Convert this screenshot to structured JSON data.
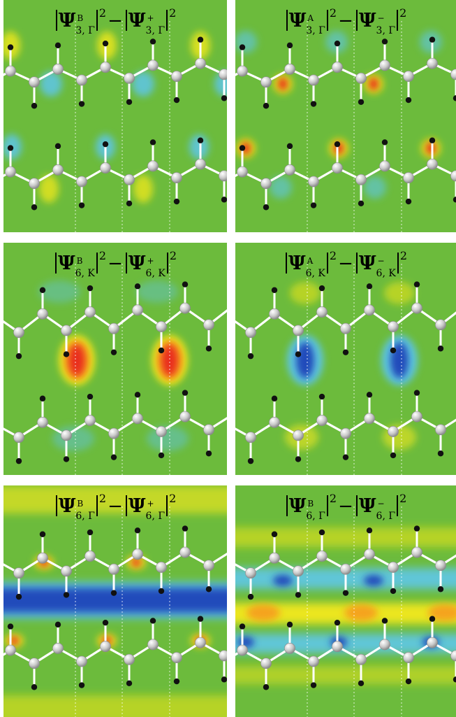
{
  "panels": [
    {
      "left": {
        "state": "B",
        "sub": "3, Γ"
      },
      "right": {
        "state": "+",
        "sub": "3, Γ"
      },
      "bg": "#6cbb3c",
      "style": "p1"
    },
    {
      "left": {
        "state": "A",
        "sub": "3, Γ"
      },
      "right": {
        "state": "−",
        "sub": "3, Γ"
      },
      "bg": "#6cbb3c",
      "style": "p2"
    },
    {
      "left": {
        "state": "B",
        "sub": "6, K"
      },
      "right": {
        "state": "+",
        "sub": "6, K"
      },
      "bg": "#6cbb3c",
      "style": "p3"
    },
    {
      "left": {
        "state": "A",
        "sub": "6, K"
      },
      "right": {
        "state": "−",
        "sub": "6, K"
      },
      "bg": "#6cbb3c",
      "style": "p4"
    },
    {
      "left": {
        "state": "B",
        "sub": "6, Γ"
      },
      "right": {
        "state": "+",
        "sub": "6, Γ"
      },
      "bg": "#6cbb3c",
      "style": "p5"
    },
    {
      "left": {
        "state": "B",
        "sub": "6, Γ"
      },
      "right": {
        "state": "−",
        "sub": "6, Γ"
      },
      "bg": "#6cbb3c",
      "style": "p6"
    }
  ],
  "symbols": {
    "psi": "Ψ",
    "squared": "2",
    "minus": "−"
  },
  "colors": {
    "green": "#6cbb3c",
    "yellow": "#f2e81a",
    "red": "#e8281e",
    "blue": "#2045b8",
    "cyan": "#5ec6e8",
    "carbon": "#c8c8c8",
    "hydrogen": "#111111"
  }
}
